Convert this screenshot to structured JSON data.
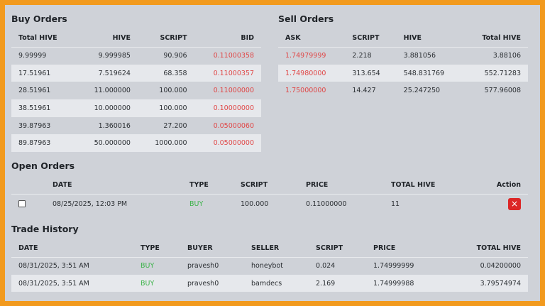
{
  "buy_orders": {
    "title": "Buy Orders",
    "headers": [
      "Total HIVE",
      "HIVE",
      "SCRIPT",
      "BID"
    ],
    "rows": [
      [
        "9.99999",
        "9.999985",
        "90.906",
        "0.11000358"
      ],
      [
        "17.51961",
        "7.519624",
        "68.358",
        "0.11000357"
      ],
      [
        "28.51961",
        "11.000000",
        "100.000",
        "0.11000000"
      ],
      [
        "38.51961",
        "10.000000",
        "100.000",
        "0.10000000"
      ],
      [
        "39.87963",
        "1.360016",
        "27.200",
        "0.05000060"
      ],
      [
        "89.87963",
        "50.000000",
        "1000.000",
        "0.05000000"
      ]
    ]
  },
  "sell_orders": {
    "title": "Sell Orders",
    "headers": [
      "ASK",
      "SCRIPT",
      "HIVE",
      "Total HIVE"
    ],
    "rows": [
      [
        "1.74979999",
        "2.218",
        "3.881056",
        "3.88106"
      ],
      [
        "1.74980000",
        "313.654",
        "548.831769",
        "552.71283"
      ],
      [
        "1.75000000",
        "14.427",
        "25.247250",
        "577.96008"
      ]
    ]
  },
  "open_orders": {
    "title": "Open Orders",
    "headers": [
      "",
      "DATE",
      "TYPE",
      "SCRIPT",
      "PRICE",
      "TOTAL HIVE",
      "Action"
    ],
    "rows": [
      {
        "date": "08/25/2025, 12:03 PM",
        "type": "BUY",
        "script": "100.000",
        "price": "0.11000000",
        "total": "11",
        "action_icon": "×"
      }
    ]
  },
  "trade_history": {
    "title": "Trade History",
    "headers": [
      "DATE",
      "TYPE",
      "BUYER",
      "SELLER",
      "SCRIPT",
      "PRICE",
      "TOTAL HIVE"
    ],
    "rows": [
      [
        "08/31/2025, 3:51 AM",
        "BUY",
        "pravesh0",
        "honeybot",
        "0.024",
        "1.74999999",
        "0.04200000"
      ],
      [
        "08/31/2025, 3:51 AM",
        "BUY",
        "pravesh0",
        "bamdecs",
        "2.169",
        "1.74999988",
        "3.79574974"
      ]
    ]
  },
  "colors": {
    "frame": "#f29a1e",
    "panel": "#cfd2d8",
    "price_red": "#e04848",
    "buy_green": "#3db34a",
    "cancel_button": "#dc2626"
  }
}
